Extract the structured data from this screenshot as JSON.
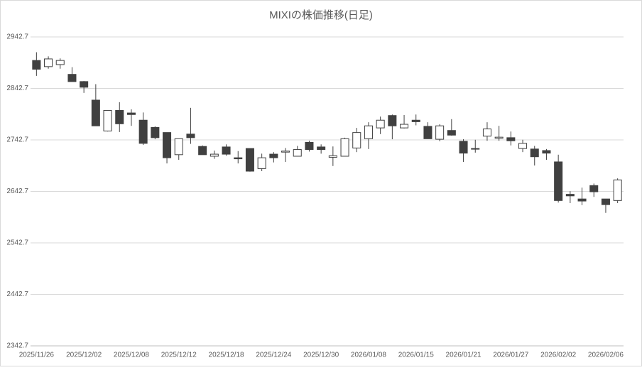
{
  "chart_data": {
    "type": "candlestick",
    "title": "MIXIの株価推移(日足)",
    "categories": [
      "2025/11/26",
      null,
      null,
      null,
      "2025/12/02",
      null,
      null,
      null,
      "2025/12/08",
      null,
      null,
      null,
      "2025/12/12",
      null,
      null,
      null,
      "2025/12/18",
      null,
      null,
      null,
      "2025/12/24",
      null,
      null,
      null,
      "2025/12/30",
      null,
      null,
      null,
      "2026/01/08",
      null,
      null,
      null,
      "2026/01/15",
      null,
      null,
      null,
      "2026/01/21",
      null,
      null,
      null,
      "2026/01/27",
      null,
      null,
      null,
      "2026/02/02",
      null,
      null,
      null,
      "2026/02/06",
      null
    ],
    "open": [
      2897,
      2885,
      2889,
      2870,
      2856,
      2820,
      2760,
      2800,
      2795,
      2781,
      2767,
      2757,
      2714,
      2754,
      2730,
      2711,
      2729,
      2708,
      2726,
      2687,
      2715,
      2719,
      2711,
      2738,
      2729,
      2709,
      2711,
      2727,
      2745,
      2766,
      2790,
      2766,
      2781,
      2769,
      2744,
      2761,
      2740,
      2726,
      2750,
      2746,
      2747,
      2726,
      2725,
      2722,
      2700,
      2637,
      2628,
      2654,
      2628,
      2625
    ],
    "high": [
      2913,
      2905,
      2901,
      2884,
      2857,
      2851,
      2800,
      2816,
      2802,
      2796,
      2769,
      2757,
      2745,
      2805,
      2732,
      2722,
      2734,
      2721,
      2726,
      2716,
      2719,
      2727,
      2731,
      2741,
      2734,
      2730,
      2747,
      2766,
      2777,
      2788,
      2792,
      2791,
      2792,
      2777,
      2773,
      2783,
      2744,
      2743,
      2777,
      2770,
      2759,
      2743,
      2731,
      2725,
      2714,
      2643,
      2650,
      2658,
      2628,
      2668
    ],
    "low": [
      2867,
      2881,
      2881,
      2856,
      2834,
      2770,
      2759,
      2758,
      2770,
      2733,
      2744,
      2697,
      2704,
      2735,
      2714,
      2706,
      2712,
      2697,
      2681,
      2682,
      2699,
      2700,
      2711,
      2720,
      2716,
      2692,
      2711,
      2719,
      2725,
      2754,
      2744,
      2765,
      2771,
      2745,
      2740,
      2751,
      2700,
      2718,
      2741,
      2741,
      2732,
      2719,
      2693,
      2704,
      2621,
      2620,
      2616,
      2632,
      2601,
      2620
    ],
    "close": [
      2880,
      2900,
      2897,
      2856,
      2845,
      2770,
      2800,
      2774,
      2792,
      2736,
      2747,
      2708,
      2745,
      2747,
      2714,
      2715,
      2715,
      2706,
      2682,
      2708,
      2708,
      2721,
      2724,
      2724,
      2724,
      2712,
      2745,
      2757,
      2770,
      2781,
      2770,
      2773,
      2778,
      2745,
      2770,
      2752,
      2717,
      2725,
      2764,
      2748,
      2741,
      2736,
      2710,
      2717,
      2625,
      2634,
      2624,
      2642,
      2617,
      2665
    ],
    "up_color": "#ffffff",
    "down_color": "#404040",
    "edge_color": "#404040",
    "ylim": [
      2342.7,
      2942.7
    ],
    "yticks": [
      2342.7,
      2442.7,
      2542.7,
      2642.7,
      2742.7,
      2842.7,
      2942.7
    ],
    "grid": true
  }
}
